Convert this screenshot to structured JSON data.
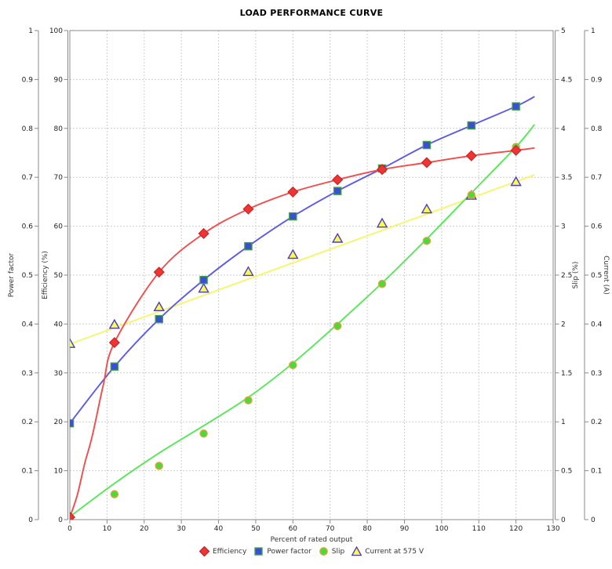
{
  "title": "LOAD PERFORMANCE CURVE",
  "axes": {
    "x": {
      "label": "Percent of rated output",
      "min": 0,
      "max": 130,
      "step": 10,
      "ticks": [
        "0",
        "10",
        "20",
        "30",
        "40",
        "50",
        "60",
        "70",
        "80",
        "90",
        "100",
        "110",
        "120",
        "130"
      ]
    },
    "power_factor": {
      "label": "Power factor",
      "min": 0,
      "max": 1,
      "step": 0.1,
      "ticks": [
        "0",
        "0.1",
        "0.2",
        "0.3",
        "0.4",
        "0.5",
        "0.6",
        "0.7",
        "0.8",
        "0.9",
        "1"
      ]
    },
    "efficiency": {
      "label": "Efficiency (%)",
      "min": 0,
      "max": 100,
      "step": 10,
      "ticks": [
        "0",
        "10",
        "20",
        "30",
        "40",
        "50",
        "60",
        "70",
        "80",
        "90",
        "100"
      ]
    },
    "slip": {
      "label": "Slip (%)",
      "min": 0,
      "max": 5,
      "step": 0.5,
      "ticks": [
        "0",
        "0.5",
        "1",
        "1.5",
        "2",
        "2.5",
        "3",
        "3.5",
        "4",
        "4.5",
        "5"
      ]
    },
    "current": {
      "label": "Current (A)",
      "min": 0,
      "max": 1,
      "step": 0.1,
      "ticks": [
        "0",
        "0.1",
        "0.2",
        "0.3",
        "0.4",
        "0.5",
        "0.6",
        "0.7",
        "0.8",
        "0.9",
        "1"
      ]
    }
  },
  "chart_data": {
    "type": "line",
    "title": "LOAD PERFORMANCE CURVE",
    "xlabel": "Percent of rated output",
    "x": [
      0,
      12,
      24,
      36,
      48,
      60,
      72,
      84,
      96,
      108,
      120
    ],
    "series": [
      {
        "name": "Efficiency",
        "axis": "efficiency",
        "marker": "diamond",
        "line_color": "#f34c4c",
        "marker_fill": "#ee3434",
        "marker_stroke": "#cc2424",
        "values": [
          0.5,
          36.2,
          50.6,
          58.5,
          63.5,
          67.0,
          69.5,
          71.6,
          73.0,
          74.4,
          75.5
        ],
        "fit_line": [
          [
            0,
            0.5
          ],
          [
            2,
            5
          ],
          [
            4,
            11.5
          ],
          [
            6,
            17
          ],
          [
            9,
            27.5
          ],
          [
            12,
            36.2
          ],
          [
            24,
            50.6
          ],
          [
            36,
            58.5
          ],
          [
            48,
            63.5
          ],
          [
            60,
            67.0
          ],
          [
            72,
            69.5
          ],
          [
            84,
            71.6
          ],
          [
            96,
            73.0
          ],
          [
            108,
            74.4
          ],
          [
            120,
            75.5
          ],
          [
            125,
            76.0
          ]
        ]
      },
      {
        "name": "Power factor",
        "axis": "power_factor",
        "marker": "square",
        "line_color": "#5b5be8",
        "marker_fill": "#3a50d0",
        "marker_stroke": "#3fa341",
        "values": [
          0.197,
          0.313,
          0.41,
          0.49,
          0.559,
          0.62,
          0.672,
          0.718,
          0.766,
          0.806,
          0.845
        ],
        "fit_line": [
          [
            0,
            0.197
          ],
          [
            12,
            0.313
          ],
          [
            24,
            0.41
          ],
          [
            36,
            0.49
          ],
          [
            48,
            0.559
          ],
          [
            60,
            0.62
          ],
          [
            72,
            0.672
          ],
          [
            84,
            0.718
          ],
          [
            96,
            0.766
          ],
          [
            108,
            0.806
          ],
          [
            120,
            0.845
          ],
          [
            125,
            0.865
          ]
        ]
      },
      {
        "name": "Slip",
        "axis": "slip",
        "marker": "circle",
        "line_color": "#57e857",
        "marker_fill": "#4cd93c",
        "marker_stroke": "#e8a33c",
        "values": [
          0.03,
          0.26,
          0.55,
          0.88,
          1.22,
          1.58,
          1.98,
          2.41,
          2.85,
          3.32,
          3.81
        ],
        "fit_line": [
          [
            0,
            0.03
          ],
          [
            12,
            0.37
          ],
          [
            24,
            0.68
          ],
          [
            36,
            0.96
          ],
          [
            48,
            1.25
          ],
          [
            60,
            1.6
          ],
          [
            72,
            2.0
          ],
          [
            84,
            2.42
          ],
          [
            96,
            2.87
          ],
          [
            108,
            3.34
          ],
          [
            120,
            3.81
          ],
          [
            125,
            4.04
          ]
        ]
      },
      {
        "name": "Current at 575 V",
        "axis": "current",
        "marker": "triangle",
        "line_color": "#f6f66a",
        "marker_fill": "#fbfb4a",
        "marker_stroke": "#4a3bc8",
        "values": [
          0.36,
          0.399,
          0.435,
          0.473,
          0.507,
          0.542,
          0.575,
          0.606,
          0.635,
          0.663,
          0.691
        ],
        "fit_line": [
          [
            0,
            0.359
          ],
          [
            125,
            0.705
          ]
        ]
      }
    ],
    "legend": [
      {
        "label": "Efficiency",
        "marker": "diamond",
        "fill": "#ee3434",
        "stroke": "#cc2424"
      },
      {
        "label": "Power factor",
        "marker": "square",
        "fill": "#3a50d0",
        "stroke": "#3fa341"
      },
      {
        "label": "Slip",
        "marker": "circle",
        "fill": "#4cd93c",
        "stroke": "#e8a33c"
      },
      {
        "label": "Current at 575 V",
        "marker": "triangle",
        "fill": "#fbfb4a",
        "stroke": "#4a3bc8"
      }
    ],
    "grid": true,
    "legend_position": "bottom",
    "xlim": [
      0,
      130
    ],
    "colors": {
      "grid": "#cccccc",
      "axis": "#888888",
      "tick_text": "#222222",
      "background": "#ffffff"
    }
  }
}
